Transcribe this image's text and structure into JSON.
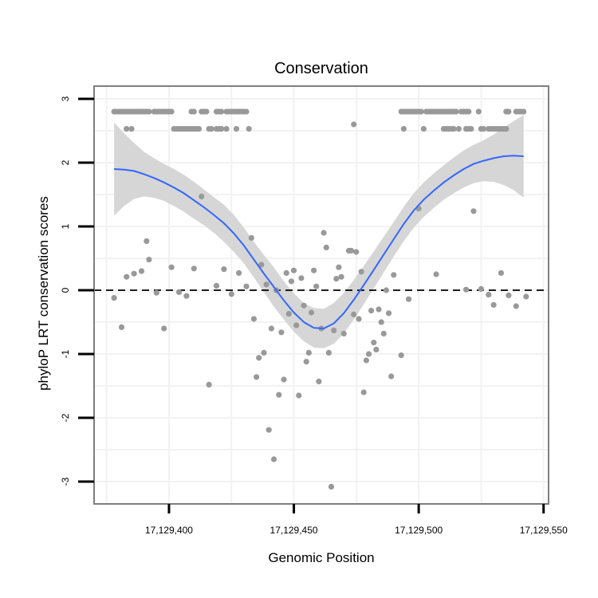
{
  "chart_data": {
    "type": "scatter",
    "title": "Conservation",
    "xlabel": "Genomic Position",
    "ylabel": "phyloP LRT conservation scores",
    "xlim": [
      17129370,
      17129552
    ],
    "ylim": [
      -3.35,
      3.2
    ],
    "x_ticks": [
      17129400,
      17129450,
      17129500,
      17129550
    ],
    "x_tick_labels": [
      "17,129,400",
      "17,129,450",
      "17,129,500",
      "17,129,550"
    ],
    "y_ticks": [
      -3,
      -2,
      -1,
      0,
      1,
      2,
      3
    ],
    "y_tick_labels": [
      "-3",
      "-2",
      "-1",
      "0",
      "1",
      "2",
      "3"
    ],
    "reference_line": {
      "y": 0,
      "style": "dashed"
    },
    "colors": {
      "points": "#999999",
      "smooth_line": "#3366ff",
      "confidence_band": "#d6d6d6",
      "reference_line": "#000000",
      "panel_border": "#7f7f7f",
      "grid": "#f2f2f2"
    },
    "points": [
      {
        "x": 17129378,
        "y": 2.8
      },
      {
        "x": 17129379,
        "y": 2.8
      },
      {
        "x": 17129380,
        "y": 2.8
      },
      {
        "x": 17129381,
        "y": 2.8
      },
      {
        "x": 17129382,
        "y": 2.8
      },
      {
        "x": 17129383,
        "y": 2.8
      },
      {
        "x": 17129384,
        "y": 2.8
      },
      {
        "x": 17129385,
        "y": 2.8
      },
      {
        "x": 17129386,
        "y": 2.8
      },
      {
        "x": 17129387,
        "y": 2.8
      },
      {
        "x": 17129388,
        "y": 2.8
      },
      {
        "x": 17129389,
        "y": 2.8
      },
      {
        "x": 17129390,
        "y": 2.8
      },
      {
        "x": 17129391,
        "y": 2.8
      },
      {
        "x": 17129392,
        "y": 2.8
      },
      {
        "x": 17129394,
        "y": 2.8
      },
      {
        "x": 17129395,
        "y": 2.8
      },
      {
        "x": 17129396,
        "y": 2.8
      },
      {
        "x": 17129397,
        "y": 2.8
      },
      {
        "x": 17129398,
        "y": 2.8
      },
      {
        "x": 17129399,
        "y": 2.8
      },
      {
        "x": 17129400,
        "y": 2.8
      },
      {
        "x": 17129401,
        "y": 2.8
      },
      {
        "x": 17129409,
        "y": 2.8
      },
      {
        "x": 17129410,
        "y": 2.8
      },
      {
        "x": 17129413,
        "y": 2.8
      },
      {
        "x": 17129414,
        "y": 2.8
      },
      {
        "x": 17129415,
        "y": 2.8
      },
      {
        "x": 17129419,
        "y": 2.8
      },
      {
        "x": 17129420,
        "y": 2.8
      },
      {
        "x": 17129421,
        "y": 2.8
      },
      {
        "x": 17129423,
        "y": 2.8
      },
      {
        "x": 17129424,
        "y": 2.8
      },
      {
        "x": 17129425,
        "y": 2.8
      },
      {
        "x": 17129426,
        "y": 2.8
      },
      {
        "x": 17129427,
        "y": 2.8
      },
      {
        "x": 17129428,
        "y": 2.8
      },
      {
        "x": 17129429,
        "y": 2.8
      },
      {
        "x": 17129430,
        "y": 2.8
      },
      {
        "x": 17129431,
        "y": 2.8
      },
      {
        "x": 17129383,
        "y": 2.53
      },
      {
        "x": 17129385,
        "y": 2.53
      },
      {
        "x": 17129402,
        "y": 2.53
      },
      {
        "x": 17129403,
        "y": 2.53
      },
      {
        "x": 17129404,
        "y": 2.53
      },
      {
        "x": 17129405,
        "y": 2.53
      },
      {
        "x": 17129406,
        "y": 2.53
      },
      {
        "x": 17129407,
        "y": 2.53
      },
      {
        "x": 17129408,
        "y": 2.53
      },
      {
        "x": 17129409,
        "y": 2.53
      },
      {
        "x": 17129410,
        "y": 2.53
      },
      {
        "x": 17129411,
        "y": 2.53
      },
      {
        "x": 17129412,
        "y": 2.53
      },
      {
        "x": 17129416,
        "y": 2.53
      },
      {
        "x": 17129417,
        "y": 2.53
      },
      {
        "x": 17129419,
        "y": 2.53
      },
      {
        "x": 17129420,
        "y": 2.53
      },
      {
        "x": 17129421,
        "y": 2.53
      },
      {
        "x": 17129423,
        "y": 2.53
      },
      {
        "x": 17129427,
        "y": 2.53
      },
      {
        "x": 17129432,
        "y": 2.53
      },
      {
        "x": 17129474,
        "y": 2.6
      },
      {
        "x": 17129493,
        "y": 2.8
      },
      {
        "x": 17129494,
        "y": 2.8
      },
      {
        "x": 17129495,
        "y": 2.8
      },
      {
        "x": 17129496,
        "y": 2.8
      },
      {
        "x": 17129497,
        "y": 2.8
      },
      {
        "x": 17129498,
        "y": 2.8
      },
      {
        "x": 17129499,
        "y": 2.8
      },
      {
        "x": 17129500,
        "y": 2.8
      },
      {
        "x": 17129501,
        "y": 2.8
      },
      {
        "x": 17129503,
        "y": 2.8
      },
      {
        "x": 17129504,
        "y": 2.8
      },
      {
        "x": 17129505,
        "y": 2.8
      },
      {
        "x": 17129506,
        "y": 2.8
      },
      {
        "x": 17129507,
        "y": 2.8
      },
      {
        "x": 17129508,
        "y": 2.8
      },
      {
        "x": 17129509,
        "y": 2.8
      },
      {
        "x": 17129510,
        "y": 2.8
      },
      {
        "x": 17129511,
        "y": 2.8
      },
      {
        "x": 17129512,
        "y": 2.8
      },
      {
        "x": 17129513,
        "y": 2.8
      },
      {
        "x": 17129514,
        "y": 2.8
      },
      {
        "x": 17129515,
        "y": 2.8
      },
      {
        "x": 17129517,
        "y": 2.8
      },
      {
        "x": 17129518,
        "y": 2.8
      },
      {
        "x": 17129519,
        "y": 2.8
      },
      {
        "x": 17129520,
        "y": 2.8
      },
      {
        "x": 17129524,
        "y": 2.8
      },
      {
        "x": 17129535,
        "y": 2.8
      },
      {
        "x": 17129536,
        "y": 2.8
      },
      {
        "x": 17129539,
        "y": 2.8
      },
      {
        "x": 17129540,
        "y": 2.8
      },
      {
        "x": 17129541,
        "y": 2.8
      },
      {
        "x": 17129542,
        "y": 2.8
      },
      {
        "x": 17129494,
        "y": 2.53
      },
      {
        "x": 17129502,
        "y": 2.53
      },
      {
        "x": 17129510,
        "y": 2.53
      },
      {
        "x": 17129511,
        "y": 2.53
      },
      {
        "x": 17129512,
        "y": 2.53
      },
      {
        "x": 17129513,
        "y": 2.53
      },
      {
        "x": 17129514,
        "y": 2.53
      },
      {
        "x": 17129516,
        "y": 2.53
      },
      {
        "x": 17129519,
        "y": 2.53
      },
      {
        "x": 17129520,
        "y": 2.53
      },
      {
        "x": 17129521,
        "y": 2.53
      },
      {
        "x": 17129525,
        "y": 2.53
      },
      {
        "x": 17129526,
        "y": 2.53
      },
      {
        "x": 17129528,
        "y": 2.53
      },
      {
        "x": 17129529,
        "y": 2.53
      },
      {
        "x": 17129530,
        "y": 2.53
      },
      {
        "x": 17129531,
        "y": 2.53
      },
      {
        "x": 17129532,
        "y": 2.53
      },
      {
        "x": 17129533,
        "y": 2.53
      },
      {
        "x": 17129534,
        "y": 2.53
      },
      {
        "x": 17129535,
        "y": 2.53
      },
      {
        "x": 17129378,
        "y": -0.12
      },
      {
        "x": 17129381,
        "y": -0.58
      },
      {
        "x": 17129383,
        "y": 0.21
      },
      {
        "x": 17129386,
        "y": 0.26
      },
      {
        "x": 17129389,
        "y": 0.3
      },
      {
        "x": 17129391,
        "y": 0.77
      },
      {
        "x": 17129392,
        "y": 0.48
      },
      {
        "x": 17129395,
        "y": -0.04
      },
      {
        "x": 17129398,
        "y": -0.6
      },
      {
        "x": 17129401,
        "y": 0.36
      },
      {
        "x": 17129404,
        "y": -0.03
      },
      {
        "x": 17129407,
        "y": -0.09
      },
      {
        "x": 17129410,
        "y": 0.34
      },
      {
        "x": 17129413,
        "y": 1.47
      },
      {
        "x": 17129416,
        "y": -1.48
      },
      {
        "x": 17129419,
        "y": 0.07
      },
      {
        "x": 17129422,
        "y": 0.33
      },
      {
        "x": 17129425,
        "y": -0.06
      },
      {
        "x": 17129428,
        "y": 0.27
      },
      {
        "x": 17129431,
        "y": 0.06
      },
      {
        "x": 17129433,
        "y": 0.82
      },
      {
        "x": 17129434,
        "y": -0.45
      },
      {
        "x": 17129435,
        "y": -1.36
      },
      {
        "x": 17129436,
        "y": -1.06
      },
      {
        "x": 17129437,
        "y": 0.4
      },
      {
        "x": 17129438,
        "y": -0.98
      },
      {
        "x": 17129439,
        "y": 0.09
      },
      {
        "x": 17129440,
        "y": -2.19
      },
      {
        "x": 17129441,
        "y": -0.6
      },
      {
        "x": 17129442,
        "y": -2.65
      },
      {
        "x": 17129443,
        "y": 0.0
      },
      {
        "x": 17129444,
        "y": -1.64
      },
      {
        "x": 17129445,
        "y": -0.66
      },
      {
        "x": 17129446,
        "y": -1.4
      },
      {
        "x": 17129447,
        "y": 0.27
      },
      {
        "x": 17129448,
        "y": -0.37
      },
      {
        "x": 17129449,
        "y": 0.14
      },
      {
        "x": 17129450,
        "y": 0.31
      },
      {
        "x": 17129451,
        "y": -0.55
      },
      {
        "x": 17129452,
        "y": -1.65
      },
      {
        "x": 17129453,
        "y": 0.19
      },
      {
        "x": 17129454,
        "y": -0.24
      },
      {
        "x": 17129455,
        "y": -1.12
      },
      {
        "x": 17129456,
        "y": -0.98
      },
      {
        "x": 17129457,
        "y": -0.35
      },
      {
        "x": 17129458,
        "y": 0.31
      },
      {
        "x": 17129459,
        "y": 0.06
      },
      {
        "x": 17129460,
        "y": -1.43
      },
      {
        "x": 17129461,
        "y": -0.6
      },
      {
        "x": 17129462,
        "y": 0.9
      },
      {
        "x": 17129463,
        "y": 0.67
      },
      {
        "x": 17129464,
        "y": -0.98
      },
      {
        "x": 17129465,
        "y": -3.08
      },
      {
        "x": 17129466,
        "y": -0.63
      },
      {
        "x": 17129467,
        "y": 0.18
      },
      {
        "x": 17129468,
        "y": 0.36
      },
      {
        "x": 17129469,
        "y": 0.21
      },
      {
        "x": 17129470,
        "y": -0.68
      },
      {
        "x": 17129472,
        "y": 0.62
      },
      {
        "x": 17129473,
        "y": 0.62
      },
      {
        "x": 17129474,
        "y": -0.38
      },
      {
        "x": 17129475,
        "y": 0.6
      },
      {
        "x": 17129476,
        "y": -0.45
      },
      {
        "x": 17129477,
        "y": 0.29
      },
      {
        "x": 17129478,
        "y": -1.6
      },
      {
        "x": 17129479,
        "y": -1.1
      },
      {
        "x": 17129480,
        "y": -1.0
      },
      {
        "x": 17129481,
        "y": -0.32
      },
      {
        "x": 17129482,
        "y": -0.82
      },
      {
        "x": 17129483,
        "y": -0.93
      },
      {
        "x": 17129484,
        "y": -0.3
      },
      {
        "x": 17129485,
        "y": -0.5
      },
      {
        "x": 17129486,
        "y": -0.68
      },
      {
        "x": 17129487,
        "y": 0.0
      },
      {
        "x": 17129488,
        "y": -0.36
      },
      {
        "x": 17129489,
        "y": -1.35
      },
      {
        "x": 17129490,
        "y": 0.24
      },
      {
        "x": 17129493,
        "y": -1.02
      },
      {
        "x": 17129496,
        "y": -0.14
      },
      {
        "x": 17129500,
        "y": 1.28
      },
      {
        "x": 17129507,
        "y": 0.25
      },
      {
        "x": 17129519,
        "y": 0.01
      },
      {
        "x": 17129522,
        "y": 1.24
      },
      {
        "x": 17129525,
        "y": 0.02
      },
      {
        "x": 17129528,
        "y": -0.07
      },
      {
        "x": 17129530,
        "y": -0.23
      },
      {
        "x": 17129533,
        "y": 0.27
      },
      {
        "x": 17129536,
        "y": -0.08
      },
      {
        "x": 17129539,
        "y": -0.25
      },
      {
        "x": 17129543,
        "y": -0.1
      }
    ],
    "smooth": {
      "x": [
        17129378,
        17129382,
        17129386,
        17129390,
        17129394,
        17129398,
        17129402,
        17129406,
        17129410,
        17129414,
        17129418,
        17129422,
        17129426,
        17129430,
        17129434,
        17129438,
        17129442,
        17129446,
        17129450,
        17129454,
        17129458,
        17129462,
        17129466,
        17129470,
        17129474,
        17129478,
        17129482,
        17129486,
        17129490,
        17129494,
        17129498,
        17129502,
        17129506,
        17129510,
        17129514,
        17129518,
        17129522,
        17129526,
        17129530,
        17129534,
        17129538,
        17129542
      ],
      "y": [
        1.9,
        1.89,
        1.87,
        1.82,
        1.76,
        1.69,
        1.61,
        1.52,
        1.41,
        1.3,
        1.18,
        1.05,
        0.89,
        0.7,
        0.48,
        0.26,
        0.05,
        -0.16,
        -0.35,
        -0.5,
        -0.59,
        -0.6,
        -0.52,
        -0.36,
        -0.15,
        0.08,
        0.32,
        0.56,
        0.8,
        1.04,
        1.25,
        1.42,
        1.56,
        1.69,
        1.8,
        1.9,
        1.98,
        2.03,
        2.07,
        2.1,
        2.11,
        2.1
      ],
      "lower": [
        1.17,
        1.32,
        1.43,
        1.47,
        1.45,
        1.4,
        1.32,
        1.23,
        1.12,
        1.02,
        0.9,
        0.76,
        0.6,
        0.42,
        0.2,
        -0.03,
        -0.26,
        -0.46,
        -0.65,
        -0.8,
        -0.9,
        -0.91,
        -0.84,
        -0.68,
        -0.46,
        -0.22,
        0.03,
        0.28,
        0.53,
        0.77,
        0.98,
        1.15,
        1.29,
        1.42,
        1.52,
        1.61,
        1.68,
        1.71,
        1.7,
        1.65,
        1.57,
        1.45
      ],
      "upper": [
        2.63,
        2.46,
        2.31,
        2.17,
        2.07,
        1.98,
        1.9,
        1.81,
        1.7,
        1.58,
        1.46,
        1.34,
        1.18,
        0.98,
        0.76,
        0.55,
        0.36,
        0.14,
        -0.05,
        -0.2,
        -0.28,
        -0.29,
        -0.2,
        -0.04,
        0.16,
        0.38,
        0.61,
        0.84,
        1.07,
        1.31,
        1.52,
        1.69,
        1.83,
        1.96,
        2.08,
        2.19,
        2.28,
        2.35,
        2.44,
        2.55,
        2.65,
        2.75
      ]
    }
  }
}
